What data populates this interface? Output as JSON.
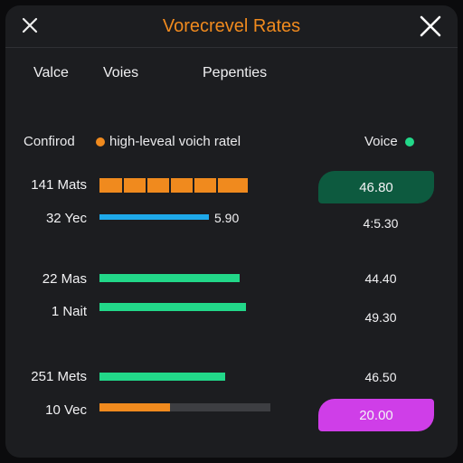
{
  "header": {
    "title": "Vorecrevel Rates"
  },
  "tabs": [
    {
      "label": "Valce"
    },
    {
      "label": "Voies"
    },
    {
      "label": "Pepenties"
    }
  ],
  "legend": {
    "left_label": "Confirod",
    "series_label": "high-leveal voich ratel",
    "series_color": "#f08a1e",
    "right_label": "Voice",
    "right_color": "#22d889"
  },
  "rows": [
    {
      "label": "141 Mats",
      "value": "46.80",
      "bar_color": "#f08a1e",
      "fill": 1.0,
      "style": "segmented",
      "highlight": "green"
    },
    {
      "label": "32 Yec",
      "value": "4:5.30",
      "inline_value": "5.90",
      "bar_color": "#1ea9ea",
      "fill": 1.0,
      "style": "thin"
    },
    {
      "label": "22 Mas",
      "value": "44.40",
      "bar_color": "#22d889",
      "fill": 1.0
    },
    {
      "label": "1 Nait",
      "value": "49.30",
      "bar_color": "#22d889",
      "fill": 1.0
    },
    {
      "label": "251 Mets",
      "value": "46.50",
      "bar_color": "#22d889",
      "fill": 1.0
    },
    {
      "label": "10 Vec",
      "value": "20.00",
      "bar_color": "#f08a1e",
      "fill": 0.41,
      "track_color": "#3d3e42",
      "highlight": "magenta"
    }
  ],
  "colors": {
    "background": "#1c1d20",
    "accent": "#f08a1e",
    "highlight_green": "#0d5a3f",
    "highlight_magenta": "#cf3ee8"
  }
}
